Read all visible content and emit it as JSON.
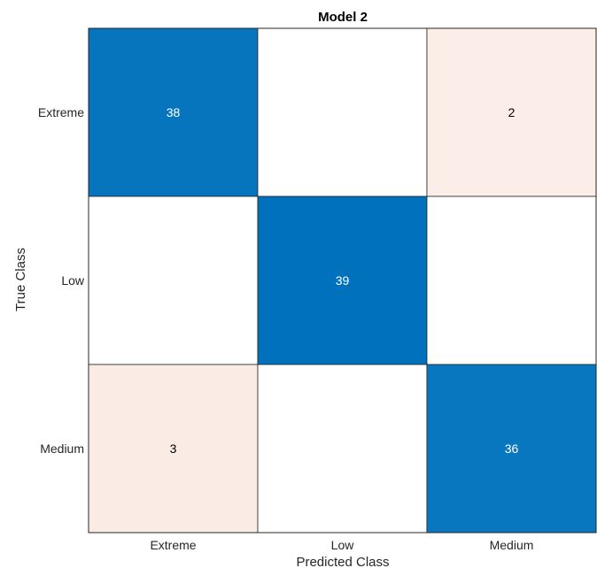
{
  "chart_data": {
    "type": "heatmap",
    "title": "Model 2",
    "xlabel": "Predicted Class",
    "ylabel": "True Class",
    "rows": [
      "Extreme",
      "Low",
      "Medium"
    ],
    "cols": [
      "Extreme",
      "Low",
      "Medium"
    ],
    "values": [
      [
        38,
        null,
        2
      ],
      [
        null,
        39,
        null
      ],
      [
        3,
        null,
        36
      ]
    ],
    "diagonal_color": "#0072BD",
    "offdiagonal_color": "#D95319",
    "empty_color": "#ffffff",
    "grid": true
  }
}
